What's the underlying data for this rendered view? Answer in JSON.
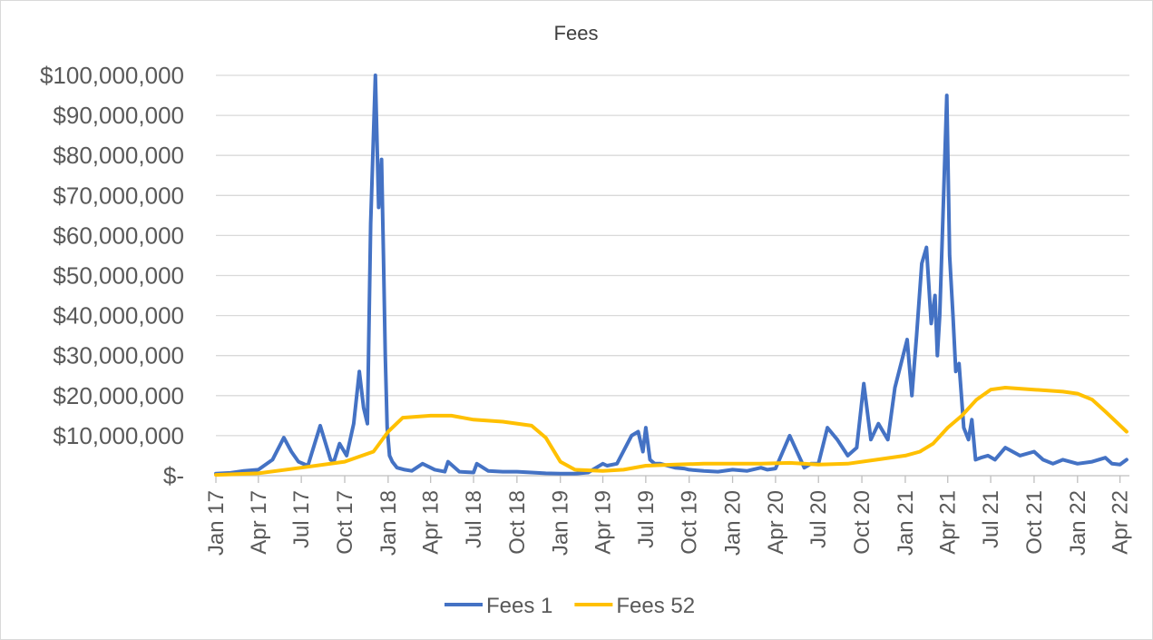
{
  "chart_data": {
    "type": "line",
    "title": "Fees",
    "xlabel": "",
    "ylabel": "",
    "ylim": [
      0,
      100000000
    ],
    "y_ticks": [
      "$-",
      "$10,000,000",
      "$20,000,000",
      "$30,000,000",
      "$40,000,000",
      "$50,000,000",
      "$60,000,000",
      "$70,000,000",
      "$80,000,000",
      "$90,000,000",
      "$100,000,000"
    ],
    "x_ticks": [
      "Jan 17",
      "Apr 17",
      "Jul 17",
      "Oct 17",
      "Jan 18",
      "Apr 18",
      "Jul 18",
      "Oct 18",
      "Jan 19",
      "Apr 19",
      "Jul 19",
      "Oct 19",
      "Jan 20",
      "Apr 20",
      "Jul 20",
      "Oct 20",
      "Jan 21",
      "Apr 21",
      "Jul 21",
      "Oct 21",
      "Jan 22",
      "Apr 22"
    ],
    "grid": "horizontal",
    "legend": "bottom",
    "colors": {
      "Fees 1": "#4472c4",
      "Fees 52": "#ffc000"
    },
    "series": [
      {
        "name": "Fees 1",
        "x": [
          "2017-01-01",
          "2017-02-01",
          "2017-03-01",
          "2017-04-01",
          "2017-05-01",
          "2017-05-25",
          "2017-06-10",
          "2017-06-25",
          "2017-07-15",
          "2017-08-10",
          "2017-09-01",
          "2017-09-08",
          "2017-09-20",
          "2017-10-05",
          "2017-10-20",
          "2017-11-01",
          "2017-11-10",
          "2017-11-18",
          "2017-11-25",
          "2017-12-05",
          "2017-12-12",
          "2017-12-18",
          "2017-12-22",
          "2017-12-26",
          "2017-12-30",
          "2018-01-04",
          "2018-01-10",
          "2018-01-20",
          "2018-02-05",
          "2018-02-20",
          "2018-03-15",
          "2018-04-10",
          "2018-05-01",
          "2018-05-08",
          "2018-06-01",
          "2018-07-01",
          "2018-07-08",
          "2018-08-01",
          "2018-09-01",
          "2018-10-01",
          "2018-11-01",
          "2018-12-01",
          "2019-01-01",
          "2019-02-01",
          "2019-03-01",
          "2019-04-01",
          "2019-04-10",
          "2019-05-01",
          "2019-06-01",
          "2019-06-15",
          "2019-06-25",
          "2019-07-01",
          "2019-07-10",
          "2019-07-20",
          "2019-08-01",
          "2019-09-01",
          "2019-09-20",
          "2019-10-01",
          "2019-11-01",
          "2019-12-01",
          "2020-01-01",
          "2020-02-01",
          "2020-03-01",
          "2020-03-15",
          "2020-04-01",
          "2020-05-01",
          "2020-06-01",
          "2020-06-15",
          "2020-07-01",
          "2020-07-20",
          "2020-08-10",
          "2020-09-01",
          "2020-09-20",
          "2020-10-05",
          "2020-10-20",
          "2020-11-05",
          "2020-11-25",
          "2020-12-10",
          "2021-01-05",
          "2021-01-15",
          "2021-01-25",
          "2021-02-05",
          "2021-02-15",
          "2021-02-25",
          "2021-03-05",
          "2021-03-10",
          "2021-03-15",
          "2021-03-22",
          "2021-03-30",
          "2021-04-05",
          "2021-04-12",
          "2021-04-18",
          "2021-04-25",
          "2021-05-05",
          "2021-05-15",
          "2021-05-22",
          "2021-05-30",
          "2021-06-10",
          "2021-06-25",
          "2021-07-10",
          "2021-08-01",
          "2021-09-01",
          "2021-10-01",
          "2021-10-20",
          "2021-11-10",
          "2021-12-01",
          "2022-01-01",
          "2022-02-01",
          "2022-03-01",
          "2022-03-15",
          "2022-04-01",
          "2022-04-15"
        ],
        "values": [
          500000,
          700000,
          1200000,
          1500000,
          4000000,
          9500000,
          6000000,
          3500000,
          2500000,
          12500000,
          4000000,
          3500000,
          8000000,
          5000000,
          13000000,
          26000000,
          17000000,
          13000000,
          63000000,
          100000000,
          67000000,
          79000000,
          55000000,
          30000000,
          12000000,
          5000000,
          3500000,
          2000000,
          1500000,
          1200000,
          3000000,
          1500000,
          1000000,
          3500000,
          1000000,
          800000,
          3000000,
          1200000,
          1000000,
          1000000,
          800000,
          600000,
          500000,
          500000,
          800000,
          3000000,
          2500000,
          3000000,
          10000000,
          11000000,
          6000000,
          12000000,
          4000000,
          3000000,
          3000000,
          2000000,
          1800000,
          1500000,
          1200000,
          1000000,
          1500000,
          1200000,
          2000000,
          1500000,
          1800000,
          10000000,
          2000000,
          3000000,
          3000000,
          12000000,
          9000000,
          5000000,
          7000000,
          23000000,
          9000000,
          13000000,
          9000000,
          22000000,
          34000000,
          20000000,
          35000000,
          53000000,
          57000000,
          38000000,
          45000000,
          30000000,
          40000000,
          65000000,
          95000000,
          55000000,
          40000000,
          26000000,
          28000000,
          12000000,
          9000000,
          14000000,
          4000000,
          4500000,
          5000000,
          4000000,
          7000000,
          5000000,
          6000000,
          4000000,
          3000000,
          4000000,
          3000000,
          3500000,
          4500000,
          3000000,
          2800000,
          4000000
        ]
      },
      {
        "name": "Fees 52",
        "x": [
          "2017-01-01",
          "2017-04-01",
          "2017-07-01",
          "2017-10-01",
          "2017-12-01",
          "2018-01-01",
          "2018-02-01",
          "2018-04-01",
          "2018-05-15",
          "2018-07-01",
          "2018-09-01",
          "2018-11-01",
          "2018-12-01",
          "2019-01-01",
          "2019-02-01",
          "2019-04-01",
          "2019-05-15",
          "2019-07-01",
          "2019-09-01",
          "2019-11-01",
          "2020-01-01",
          "2020-03-01",
          "2020-05-01",
          "2020-07-01",
          "2020-09-01",
          "2020-11-01",
          "2021-01-01",
          "2021-02-01",
          "2021-03-01",
          "2021-04-01",
          "2021-05-01",
          "2021-06-01",
          "2021-07-01",
          "2021-08-01",
          "2021-10-01",
          "2021-12-01",
          "2022-01-01",
          "2022-02-01",
          "2022-03-01",
          "2022-04-15"
        ],
        "values": [
          200000,
          600000,
          2000000,
          3500000,
          6000000,
          11000000,
          14500000,
          15000000,
          15000000,
          14000000,
          13500000,
          12500000,
          9500000,
          3500000,
          1500000,
          1200000,
          1500000,
          2500000,
          2800000,
          3000000,
          3000000,
          3000000,
          3200000,
          2800000,
          3000000,
          4000000,
          5000000,
          6000000,
          8000000,
          12000000,
          15000000,
          19000000,
          21500000,
          22000000,
          21500000,
          21000000,
          20500000,
          19000000,
          16000000,
          11000000
        ]
      }
    ]
  }
}
